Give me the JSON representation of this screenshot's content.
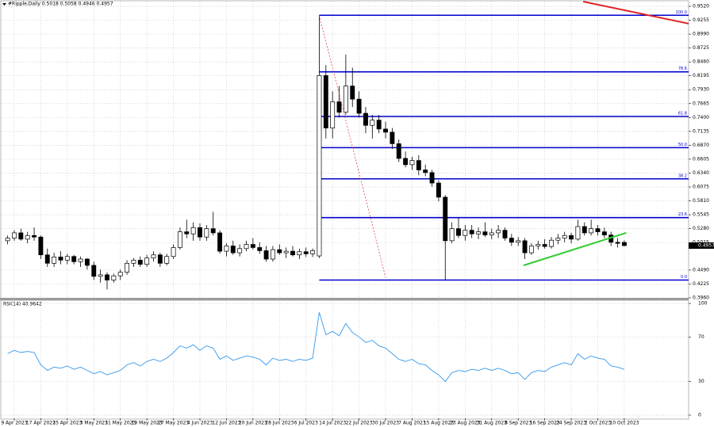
{
  "chart_data": [
    {
      "type": "candlestick",
      "title": "#Ripple,Daily 0.5018 0.5058 0.4946 0.4957",
      "candles": [
        [
          0.505,
          0.515,
          0.498,
          0.51
        ],
        [
          0.51,
          0.525,
          0.505,
          0.52
        ],
        [
          0.52,
          0.528,
          0.505,
          0.508
        ],
        [
          0.508,
          0.522,
          0.5,
          0.515
        ],
        [
          0.515,
          0.53,
          0.505,
          0.512
        ],
        [
          0.512,
          0.515,
          0.47,
          0.478
        ],
        [
          0.478,
          0.49,
          0.455,
          0.462
        ],
        [
          0.462,
          0.482,
          0.455,
          0.474
        ],
        [
          0.474,
          0.485,
          0.46,
          0.468
        ],
        [
          0.468,
          0.48,
          0.46,
          0.475
        ],
        [
          0.475,
          0.478,
          0.46,
          0.465
        ],
        [
          0.465,
          0.475,
          0.455,
          0.47
        ],
        [
          0.47,
          0.472,
          0.45,
          0.458
        ],
        [
          0.458,
          0.465,
          0.43,
          0.437
        ],
        [
          0.437,
          0.45,
          0.425,
          0.44
        ],
        [
          0.44,
          0.445,
          0.412,
          0.43
        ],
        [
          0.43,
          0.442,
          0.425,
          0.438
        ],
        [
          0.438,
          0.45,
          0.43,
          0.445
        ],
        [
          0.445,
          0.468,
          0.44,
          0.462
        ],
        [
          0.462,
          0.472,
          0.455,
          0.468
        ],
        [
          0.468,
          0.475,
          0.455,
          0.46
        ],
        [
          0.46,
          0.478,
          0.455,
          0.472
        ],
        [
          0.472,
          0.485,
          0.465,
          0.478
        ],
        [
          0.478,
          0.482,
          0.455,
          0.462
        ],
        [
          0.462,
          0.48,
          0.458,
          0.475
        ],
        [
          0.475,
          0.498,
          0.47,
          0.492
        ],
        [
          0.492,
          0.53,
          0.488,
          0.522
        ],
        [
          0.522,
          0.545,
          0.51,
          0.518
        ],
        [
          0.518,
          0.54,
          0.505,
          0.53
        ],
        [
          0.53,
          0.538,
          0.505,
          0.512
        ],
        [
          0.512,
          0.535,
          0.505,
          0.528
        ],
        [
          0.528,
          0.56,
          0.515,
          0.52
        ],
        [
          0.52,
          0.525,
          0.48,
          0.485
        ],
        [
          0.485,
          0.5,
          0.475,
          0.495
        ],
        [
          0.495,
          0.505,
          0.478,
          0.482
        ],
        [
          0.482,
          0.498,
          0.475,
          0.49
        ],
        [
          0.49,
          0.505,
          0.485,
          0.498
        ],
        [
          0.498,
          0.51,
          0.488,
          0.492
        ],
        [
          0.492,
          0.502,
          0.48,
          0.486
        ],
        [
          0.486,
          0.495,
          0.465,
          0.47
        ],
        [
          0.47,
          0.495,
          0.465,
          0.488
        ],
        [
          0.488,
          0.498,
          0.478,
          0.482
        ],
        [
          0.482,
          0.492,
          0.472,
          0.485
        ],
        [
          0.485,
          0.495,
          0.475,
          0.478
        ],
        [
          0.478,
          0.49,
          0.47,
          0.484
        ],
        [
          0.484,
          0.492,
          0.474,
          0.48
        ],
        [
          0.48,
          0.49,
          0.474,
          0.486
        ],
        [
          0.476,
          0.935,
          0.472,
          0.82
        ],
        [
          0.82,
          0.84,
          0.7,
          0.72
        ],
        [
          0.72,
          0.79,
          0.7,
          0.77
        ],
        [
          0.77,
          0.8,
          0.74,
          0.75
        ],
        [
          0.75,
          0.86,
          0.745,
          0.8
        ],
        [
          0.8,
          0.835,
          0.76,
          0.775
        ],
        [
          0.775,
          0.79,
          0.74,
          0.748
        ],
        [
          0.748,
          0.76,
          0.71,
          0.725
        ],
        [
          0.725,
          0.745,
          0.7,
          0.735
        ],
        [
          0.735,
          0.745,
          0.71,
          0.718
        ],
        [
          0.718,
          0.732,
          0.7,
          0.712
        ],
        [
          0.712,
          0.72,
          0.68,
          0.69
        ],
        [
          0.69,
          0.698,
          0.655,
          0.662
        ],
        [
          0.662,
          0.675,
          0.645,
          0.65
        ],
        [
          0.65,
          0.665,
          0.64,
          0.658
        ],
        [
          0.658,
          0.668,
          0.63,
          0.64
        ],
        [
          0.64,
          0.65,
          0.628,
          0.635
        ],
        [
          0.635,
          0.64,
          0.608,
          0.615
        ],
        [
          0.615,
          0.62,
          0.58,
          0.588
        ],
        [
          0.588,
          0.592,
          0.43,
          0.505
        ],
        [
          0.505,
          0.54,
          0.5,
          0.528
        ],
        [
          0.528,
          0.55,
          0.51,
          0.515
        ],
        [
          0.515,
          0.535,
          0.505,
          0.525
        ],
        [
          0.525,
          0.535,
          0.51,
          0.518
        ],
        [
          0.518,
          0.53,
          0.508,
          0.522
        ],
        [
          0.522,
          0.54,
          0.512,
          0.516
        ],
        [
          0.516,
          0.528,
          0.508,
          0.52
        ],
        [
          0.52,
          0.535,
          0.51,
          0.525
        ],
        [
          0.525,
          0.53,
          0.505,
          0.51
        ],
        [
          0.51,
          0.518,
          0.495,
          0.502
        ],
        [
          0.502,
          0.512,
          0.495,
          0.505
        ],
        [
          0.505,
          0.51,
          0.47,
          0.482
        ],
        [
          0.482,
          0.5,
          0.478,
          0.495
        ],
        [
          0.495,
          0.505,
          0.488,
          0.498
        ],
        [
          0.498,
          0.508,
          0.49,
          0.494
        ],
        [
          0.494,
          0.512,
          0.49,
          0.506
        ],
        [
          0.506,
          0.518,
          0.498,
          0.51
        ],
        [
          0.51,
          0.522,
          0.502,
          0.515
        ],
        [
          0.515,
          0.52,
          0.5,
          0.508
        ],
        [
          0.508,
          0.545,
          0.505,
          0.532
        ],
        [
          0.532,
          0.54,
          0.515,
          0.52
        ],
        [
          0.52,
          0.545,
          0.515,
          0.528
        ],
        [
          0.528,
          0.535,
          0.515,
          0.522
        ],
        [
          0.522,
          0.53,
          0.51,
          0.516
        ],
        [
          0.516,
          0.522,
          0.495,
          0.502
        ],
        [
          0.502,
          0.51,
          0.492,
          0.5
        ],
        [
          0.5018,
          0.5058,
          0.4946,
          0.4957
        ]
      ],
      "xlim": [
        -1.15,
        102.7
      ],
      "xticks": [
        {
          "value": 1,
          "label": "9 Apr 2023"
        },
        {
          "value": 5,
          "label": "17 Apr 2023"
        },
        {
          "value": 9,
          "label": "25 Apr 2023"
        },
        {
          "value": 13,
          "label": "3 May 2023"
        },
        {
          "value": 17,
          "label": "11 May 2023"
        },
        {
          "value": 21,
          "label": "19 May 2023"
        },
        {
          "value": 25,
          "label": "27 May 2023"
        },
        {
          "value": 29,
          "label": "4 Jun 2023"
        },
        {
          "value": 33,
          "label": "12 Jun 2023"
        },
        {
          "value": 37,
          "label": "20 Jun 2023"
        },
        {
          "value": 41,
          "label": "28 Jun 2023"
        },
        {
          "value": 45,
          "label": "6 Jul 2023"
        },
        {
          "value": 49,
          "label": "14 Jul 2023"
        },
        {
          "value": 53,
          "label": "22 Jul 2023"
        },
        {
          "value": 57,
          "label": "30 Jul 2023"
        },
        {
          "value": 61,
          "label": "7 Aug 2023"
        },
        {
          "value": 65,
          "label": "15 Aug 2023"
        },
        {
          "value": 69,
          "label": "23 Aug 2023"
        },
        {
          "value": 73,
          "label": "31 Aug 2023"
        },
        {
          "value": 77,
          "label": "8 Sep 2023"
        },
        {
          "value": 81,
          "label": "16 Sep 2023"
        },
        {
          "value": 85,
          "label": "24 Sep 2023"
        },
        {
          "value": 89,
          "label": "2 Oct 2023"
        },
        {
          "value": 93,
          "label": "10 Oct 2023"
        }
      ],
      "ylim": [
        0.396,
        0.952
      ],
      "yticks": [
        {
          "value": 0.952,
          "label": "0.9520"
        },
        {
          "value": 0.9255,
          "label": "0.9255"
        },
        {
          "value": 0.899,
          "label": "0.8990"
        },
        {
          "value": 0.8725,
          "label": "0.8725"
        },
        {
          "value": 0.846,
          "label": "0.8460"
        },
        {
          "value": 0.8195,
          "label": "0.8195"
        },
        {
          "value": 0.793,
          "label": "0.7930"
        },
        {
          "value": 0.7665,
          "label": "0.7665"
        },
        {
          "value": 0.74,
          "label": "0.7400"
        },
        {
          "value": 0.7135,
          "label": "0.7135"
        },
        {
          "value": 0.687,
          "label": "0.6870"
        },
        {
          "value": 0.6605,
          "label": "0.6605"
        },
        {
          "value": 0.634,
          "label": "0.6340"
        },
        {
          "value": 0.6075,
          "label": "0.6075"
        },
        {
          "value": 0.581,
          "label": "0.5810"
        },
        {
          "value": 0.5545,
          "label": "0.5545"
        },
        {
          "value": 0.528,
          "label": "0.5280"
        },
        {
          "value": 0.5015,
          "label": "0.5015"
        },
        {
          "value": 0.449,
          "label": "0.4490"
        },
        {
          "value": 0.4225,
          "label": "0.4225"
        },
        {
          "value": 0.396,
          "label": "0.3960"
        }
      ],
      "grid": true,
      "last_price": 0.4957,
      "fib_start": 47,
      "fib_levels": [
        {
          "value": 0.935,
          "label": "100.0"
        },
        {
          "value": 0.827,
          "label": "78.6"
        },
        {
          "value": 0.742,
          "label": "61.8"
        },
        {
          "value": 0.6825,
          "label": "50.0"
        },
        {
          "value": 0.623,
          "label": "38.2"
        },
        {
          "value": 0.549,
          "label": "23.6"
        },
        {
          "value": 0.43,
          "label": "0.0"
        }
      ],
      "fib_color": "#0000cc",
      "trendlines": [
        {
          "x": [
            47,
            57
          ],
          "y": [
            0.935,
            0.435
          ],
          "color": "#e03030",
          "style": "dotted"
        },
        {
          "x": [
            86.8,
            102.7
          ],
          "y": [
            0.961,
            0.919
          ],
          "color": "#e02020",
          "style": "solid"
        },
        {
          "x": [
            77.8,
            93.3
          ],
          "y": [
            0.458,
            0.52
          ],
          "color": "#33cc33",
          "style": "solid"
        }
      ]
    },
    {
      "type": "line",
      "title": "RSI(14) 40.9642",
      "color": "#3399ee",
      "values": [
        55,
        58,
        56,
        57,
        56,
        45,
        40,
        43,
        42,
        44,
        41,
        43,
        40,
        37,
        39,
        36,
        38,
        40,
        45,
        47,
        44,
        48,
        50,
        48,
        51,
        56,
        62,
        60,
        63,
        58,
        62,
        60,
        50,
        53,
        49,
        51,
        53,
        52,
        50,
        45,
        51,
        49,
        50,
        48,
        50,
        49,
        51,
        92,
        72,
        75,
        71,
        82,
        74,
        70,
        65,
        67,
        62,
        60,
        55,
        50,
        48,
        50,
        46,
        45,
        40,
        36,
        30,
        38,
        40,
        39,
        41,
        40,
        42,
        40,
        42,
        40,
        37,
        38,
        32,
        38,
        40,
        39,
        43,
        45,
        47,
        45,
        55,
        50,
        53,
        51,
        50,
        44,
        43,
        40.9642
      ],
      "ylim": [
        0,
        100
      ],
      "yticks": [
        100,
        70,
        30,
        0
      ]
    }
  ]
}
